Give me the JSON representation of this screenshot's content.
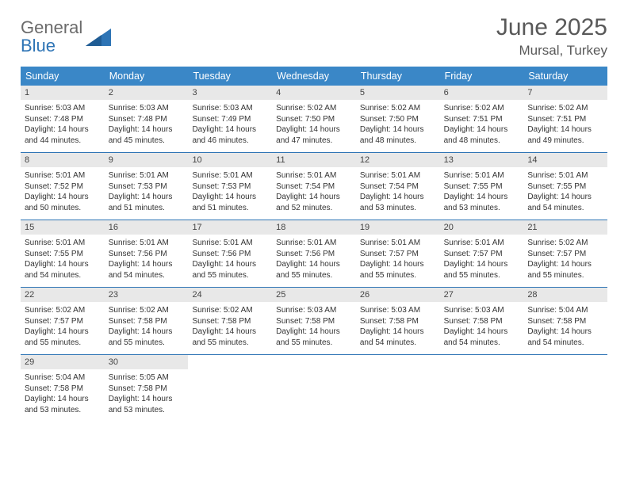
{
  "logo": {
    "text1": "General",
    "text2": "Blue"
  },
  "title": "June 2025",
  "subtitle": "Mursal, Turkey",
  "header_bg": "#3a87c7",
  "header_text_color": "#ffffff",
  "daynum_bg": "#e8e8e8",
  "week_border_color": "#2e74b5",
  "body_bg": "#ffffff",
  "font_family": "Arial, Helvetica, sans-serif",
  "weekdays": [
    "Sunday",
    "Monday",
    "Tuesday",
    "Wednesday",
    "Thursday",
    "Friday",
    "Saturday"
  ],
  "weeks": [
    [
      {
        "n": "1",
        "l1": "Sunrise: 5:03 AM",
        "l2": "Sunset: 7:48 PM",
        "l3": "Daylight: 14 hours",
        "l4": "and 44 minutes."
      },
      {
        "n": "2",
        "l1": "Sunrise: 5:03 AM",
        "l2": "Sunset: 7:48 PM",
        "l3": "Daylight: 14 hours",
        "l4": "and 45 minutes."
      },
      {
        "n": "3",
        "l1": "Sunrise: 5:03 AM",
        "l2": "Sunset: 7:49 PM",
        "l3": "Daylight: 14 hours",
        "l4": "and 46 minutes."
      },
      {
        "n": "4",
        "l1": "Sunrise: 5:02 AM",
        "l2": "Sunset: 7:50 PM",
        "l3": "Daylight: 14 hours",
        "l4": "and 47 minutes."
      },
      {
        "n": "5",
        "l1": "Sunrise: 5:02 AM",
        "l2": "Sunset: 7:50 PM",
        "l3": "Daylight: 14 hours",
        "l4": "and 48 minutes."
      },
      {
        "n": "6",
        "l1": "Sunrise: 5:02 AM",
        "l2": "Sunset: 7:51 PM",
        "l3": "Daylight: 14 hours",
        "l4": "and 48 minutes."
      },
      {
        "n": "7",
        "l1": "Sunrise: 5:02 AM",
        "l2": "Sunset: 7:51 PM",
        "l3": "Daylight: 14 hours",
        "l4": "and 49 minutes."
      }
    ],
    [
      {
        "n": "8",
        "l1": "Sunrise: 5:01 AM",
        "l2": "Sunset: 7:52 PM",
        "l3": "Daylight: 14 hours",
        "l4": "and 50 minutes."
      },
      {
        "n": "9",
        "l1": "Sunrise: 5:01 AM",
        "l2": "Sunset: 7:53 PM",
        "l3": "Daylight: 14 hours",
        "l4": "and 51 minutes."
      },
      {
        "n": "10",
        "l1": "Sunrise: 5:01 AM",
        "l2": "Sunset: 7:53 PM",
        "l3": "Daylight: 14 hours",
        "l4": "and 51 minutes."
      },
      {
        "n": "11",
        "l1": "Sunrise: 5:01 AM",
        "l2": "Sunset: 7:54 PM",
        "l3": "Daylight: 14 hours",
        "l4": "and 52 minutes."
      },
      {
        "n": "12",
        "l1": "Sunrise: 5:01 AM",
        "l2": "Sunset: 7:54 PM",
        "l3": "Daylight: 14 hours",
        "l4": "and 53 minutes."
      },
      {
        "n": "13",
        "l1": "Sunrise: 5:01 AM",
        "l2": "Sunset: 7:55 PM",
        "l3": "Daylight: 14 hours",
        "l4": "and 53 minutes."
      },
      {
        "n": "14",
        "l1": "Sunrise: 5:01 AM",
        "l2": "Sunset: 7:55 PM",
        "l3": "Daylight: 14 hours",
        "l4": "and 54 minutes."
      }
    ],
    [
      {
        "n": "15",
        "l1": "Sunrise: 5:01 AM",
        "l2": "Sunset: 7:55 PM",
        "l3": "Daylight: 14 hours",
        "l4": "and 54 minutes."
      },
      {
        "n": "16",
        "l1": "Sunrise: 5:01 AM",
        "l2": "Sunset: 7:56 PM",
        "l3": "Daylight: 14 hours",
        "l4": "and 54 minutes."
      },
      {
        "n": "17",
        "l1": "Sunrise: 5:01 AM",
        "l2": "Sunset: 7:56 PM",
        "l3": "Daylight: 14 hours",
        "l4": "and 55 minutes."
      },
      {
        "n": "18",
        "l1": "Sunrise: 5:01 AM",
        "l2": "Sunset: 7:56 PM",
        "l3": "Daylight: 14 hours",
        "l4": "and 55 minutes."
      },
      {
        "n": "19",
        "l1": "Sunrise: 5:01 AM",
        "l2": "Sunset: 7:57 PM",
        "l3": "Daylight: 14 hours",
        "l4": "and 55 minutes."
      },
      {
        "n": "20",
        "l1": "Sunrise: 5:01 AM",
        "l2": "Sunset: 7:57 PM",
        "l3": "Daylight: 14 hours",
        "l4": "and 55 minutes."
      },
      {
        "n": "21",
        "l1": "Sunrise: 5:02 AM",
        "l2": "Sunset: 7:57 PM",
        "l3": "Daylight: 14 hours",
        "l4": "and 55 minutes."
      }
    ],
    [
      {
        "n": "22",
        "l1": "Sunrise: 5:02 AM",
        "l2": "Sunset: 7:57 PM",
        "l3": "Daylight: 14 hours",
        "l4": "and 55 minutes."
      },
      {
        "n": "23",
        "l1": "Sunrise: 5:02 AM",
        "l2": "Sunset: 7:58 PM",
        "l3": "Daylight: 14 hours",
        "l4": "and 55 minutes."
      },
      {
        "n": "24",
        "l1": "Sunrise: 5:02 AM",
        "l2": "Sunset: 7:58 PM",
        "l3": "Daylight: 14 hours",
        "l4": "and 55 minutes."
      },
      {
        "n": "25",
        "l1": "Sunrise: 5:03 AM",
        "l2": "Sunset: 7:58 PM",
        "l3": "Daylight: 14 hours",
        "l4": "and 55 minutes."
      },
      {
        "n": "26",
        "l1": "Sunrise: 5:03 AM",
        "l2": "Sunset: 7:58 PM",
        "l3": "Daylight: 14 hours",
        "l4": "and 54 minutes."
      },
      {
        "n": "27",
        "l1": "Sunrise: 5:03 AM",
        "l2": "Sunset: 7:58 PM",
        "l3": "Daylight: 14 hours",
        "l4": "and 54 minutes."
      },
      {
        "n": "28",
        "l1": "Sunrise: 5:04 AM",
        "l2": "Sunset: 7:58 PM",
        "l3": "Daylight: 14 hours",
        "l4": "and 54 minutes."
      }
    ],
    [
      {
        "n": "29",
        "l1": "Sunrise: 5:04 AM",
        "l2": "Sunset: 7:58 PM",
        "l3": "Daylight: 14 hours",
        "l4": "and 53 minutes."
      },
      {
        "n": "30",
        "l1": "Sunrise: 5:05 AM",
        "l2": "Sunset: 7:58 PM",
        "l3": "Daylight: 14 hours",
        "l4": "and 53 minutes."
      },
      {
        "empty": true
      },
      {
        "empty": true
      },
      {
        "empty": true
      },
      {
        "empty": true
      },
      {
        "empty": true
      }
    ]
  ]
}
